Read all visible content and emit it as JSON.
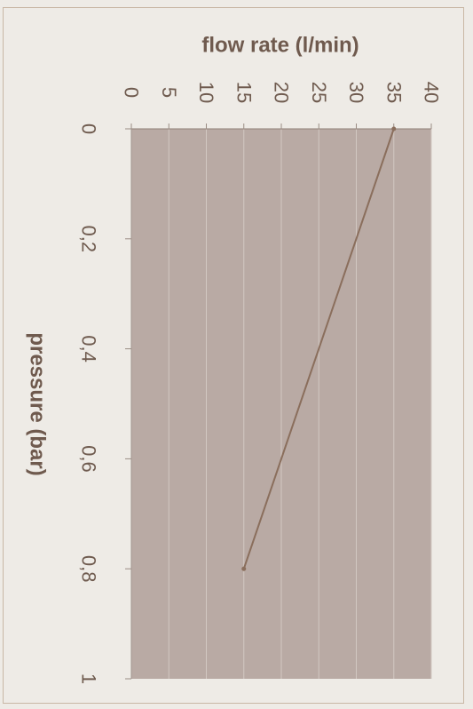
{
  "chart_data": {
    "type": "line",
    "orientation": "rotated-90-clockwise",
    "title": "",
    "xlabel": "pressure (bar)",
    "ylabel": "flow rate (l/min)",
    "xlim": [
      0,
      1
    ],
    "ylim": [
      0,
      40
    ],
    "x_ticks": [
      0,
      0.2,
      0.4,
      0.6,
      0.8,
      1
    ],
    "x_tick_labels": [
      "0",
      "0,2",
      "0,4",
      "0,6",
      "0,8",
      "1"
    ],
    "y_ticks": [
      0,
      5,
      10,
      15,
      20,
      25,
      30,
      35,
      40
    ],
    "y_tick_labels": [
      "0",
      "5",
      "10",
      "15",
      "20",
      "25",
      "30",
      "35",
      "40"
    ],
    "series": [
      {
        "x": [
          0,
          0.8
        ],
        "y": [
          35,
          15
        ]
      }
    ],
    "grid": true,
    "colors": {
      "plot_bg": "#b9aaa4",
      "grid": "#d2c8c2",
      "line": "#8a6e5c",
      "text": "#6f5b4f"
    }
  }
}
